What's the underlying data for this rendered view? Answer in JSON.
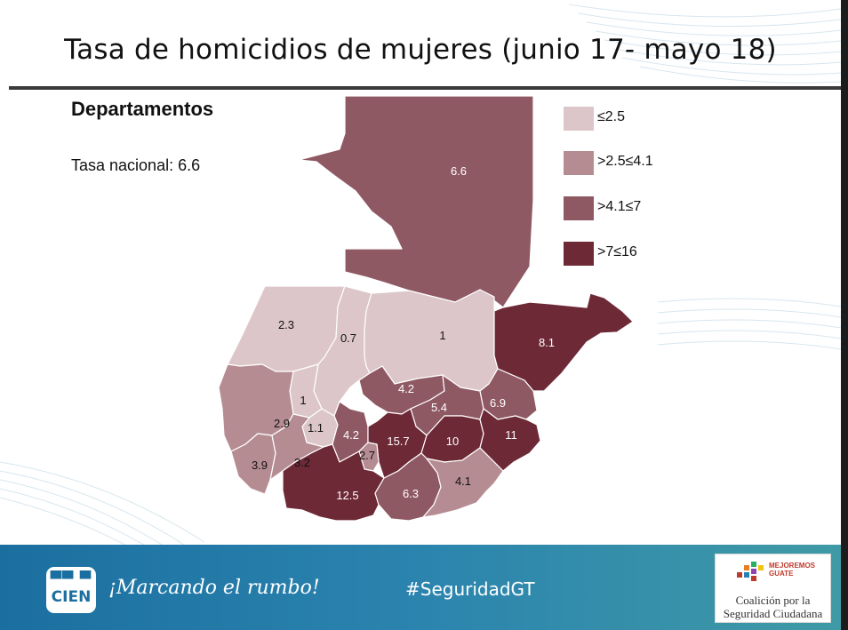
{
  "slide": {
    "title": "Tasa de homicidios de mujeres (junio 17- mayo 18)",
    "subtitle": "Departamentos",
    "national_rate_text": "Tasa nacional: 6.6"
  },
  "colors": {
    "class1": "#dcc6c9",
    "class2": "#b68c93",
    "class3": "#8f5964",
    "class4": "#6d2a36",
    "footer": "#2b84ae"
  },
  "legend": [
    {
      "label": "≤2.5",
      "color": "#dcc6c9"
    },
    {
      "label": ">2.5≤4.1",
      "color": "#b68c93"
    },
    {
      "label": ">4.1≤7",
      "color": "#8f5964"
    },
    {
      "label": ">7≤16",
      "color": "#6d2a36"
    }
  ],
  "departments": [
    {
      "label": "6.6",
      "value": 6.6,
      "class": 3
    },
    {
      "label": "2.3",
      "value": 2.3,
      "class": 1
    },
    {
      "label": "0.7",
      "value": 0.7,
      "class": 1
    },
    {
      "label": "1",
      "value": 1,
      "class": 1
    },
    {
      "label": "8.1",
      "value": 8.1,
      "class": 4
    },
    {
      "label": "4.2",
      "value": 4.2,
      "class": 3
    },
    {
      "label": "5.4",
      "value": 5.4,
      "class": 3
    },
    {
      "label": "6.9",
      "value": 6.9,
      "class": 3
    },
    {
      "label": "1",
      "value": 1,
      "class": 1
    },
    {
      "label": "2.9",
      "value": 2.9,
      "class": 2
    },
    {
      "label": "1.1",
      "value": 1.1,
      "class": 1
    },
    {
      "label": "4.2",
      "value": 4.2,
      "class": 3
    },
    {
      "label": "15.7",
      "value": 15.7,
      "class": 4
    },
    {
      "label": "10",
      "value": 10,
      "class": 4
    },
    {
      "label": "11",
      "value": 11,
      "class": 4
    },
    {
      "label": "3.9",
      "value": 3.9,
      "class": 2
    },
    {
      "label": "3.2",
      "value": 3.2,
      "class": 2
    },
    {
      "label": "2.7",
      "value": 2.7,
      "class": 2
    },
    {
      "label": "12.5",
      "value": 12.5,
      "class": 4
    },
    {
      "label": "6.3",
      "value": 6.3,
      "class": 3
    },
    {
      "label": "4.1",
      "value": 4.1,
      "class": 2
    }
  ],
  "footer": {
    "logo_top": "▀▀ ▀",
    "logo_bottom": "CIEN",
    "slogan": "¡Marcando el rumbo!",
    "hashtag": "#SeguridadGT",
    "coalition_logo_text": "MEJOREMOS\nGUATE",
    "coalition_line1": "Coalición por la",
    "coalition_line2": "Seguridad Ciudadana"
  }
}
